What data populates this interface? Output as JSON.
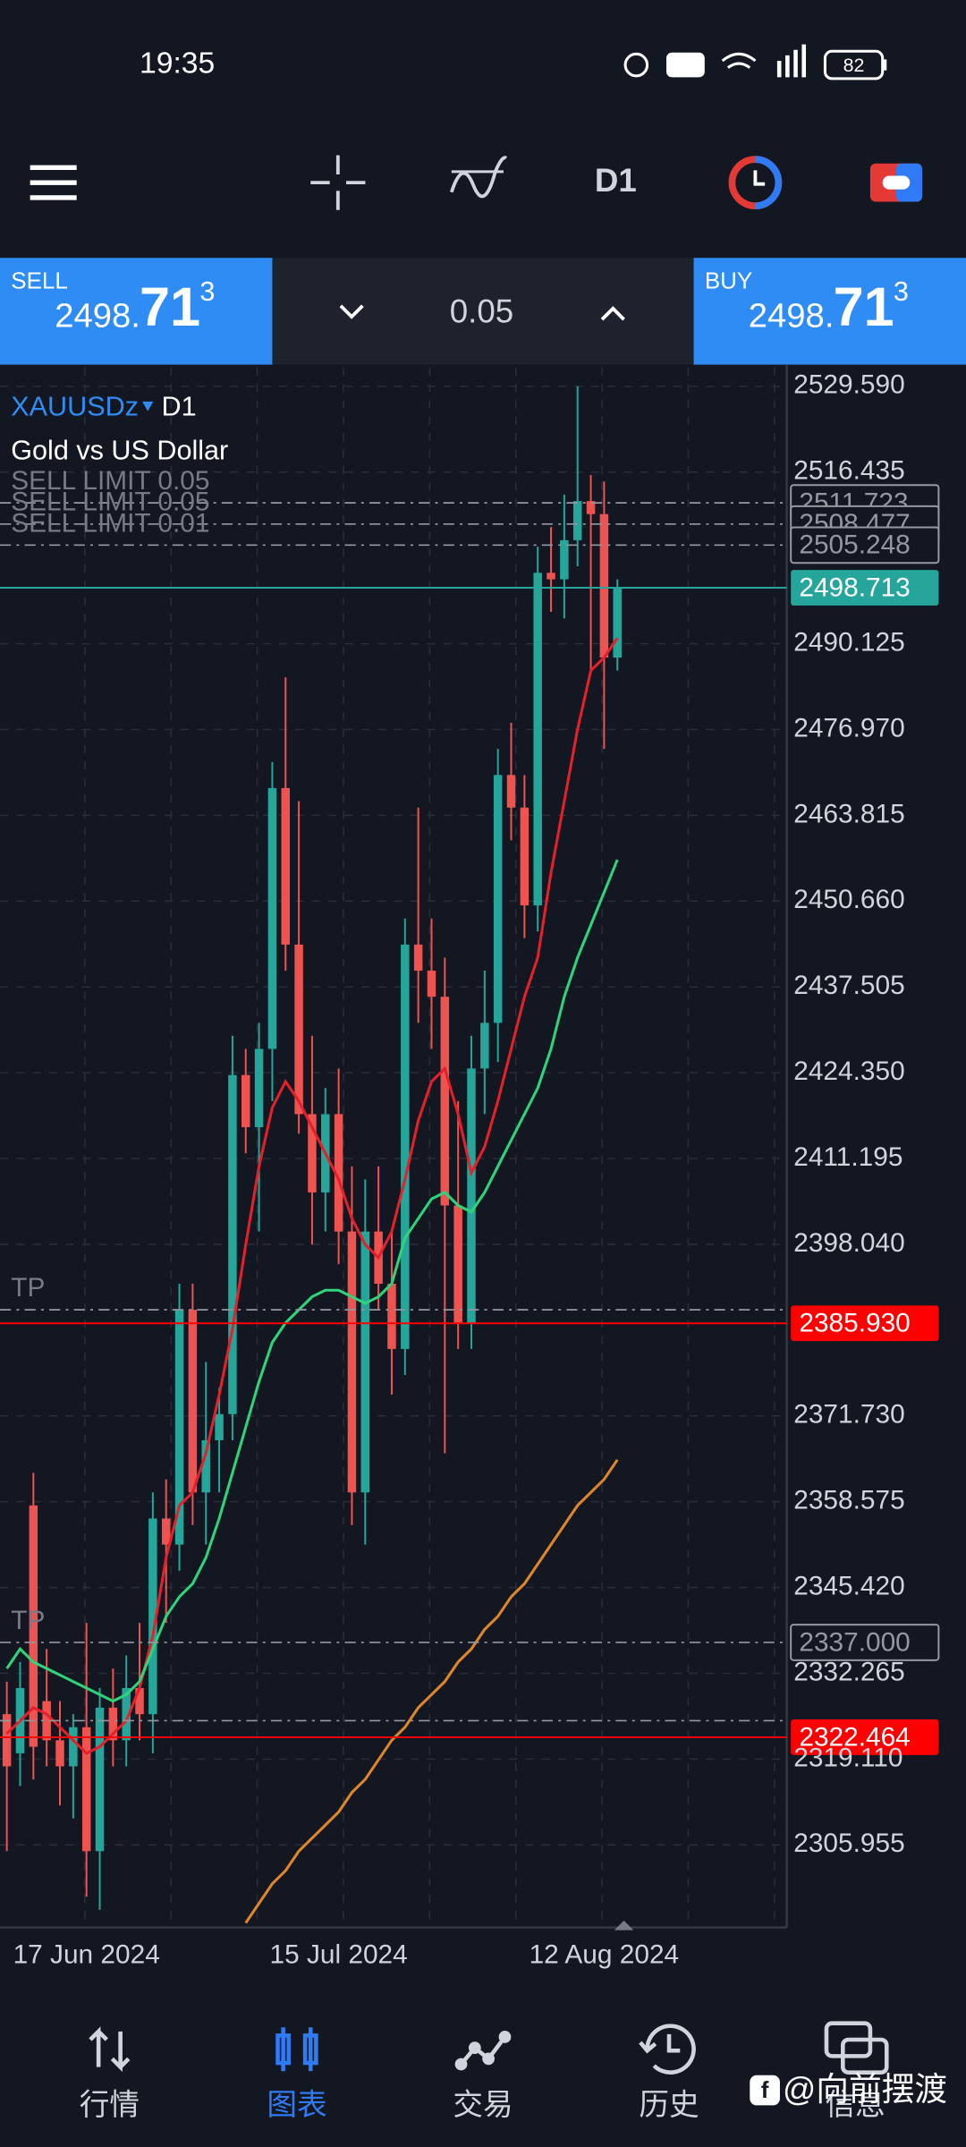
{
  "status_bar": {
    "time": "19:35",
    "battery": "82"
  },
  "toolbar": {
    "timeframe": "D1"
  },
  "trade_panel": {
    "sell": {
      "label": "SELL",
      "price_prefix": "2498.",
      "price_big": "71",
      "price_sup": "3"
    },
    "volume": "0.05",
    "buy": {
      "label": "BUY",
      "price_prefix": "2498.",
      "price_big": "71",
      "price_sup": "3"
    }
  },
  "chart_data": {
    "type": "candlestick",
    "symbol": "XAUUSDz",
    "timeframe": "D1",
    "title": "Gold vs US Dollar",
    "categories": [
      null,
      null,
      null,
      null,
      null,
      null,
      "17 Jun 2024",
      null,
      null,
      null,
      null,
      null,
      null,
      null,
      null,
      null,
      null,
      null,
      null,
      null,
      null,
      null,
      null,
      null,
      null,
      "15 Jul 2024",
      null,
      null,
      null,
      null,
      null,
      null,
      null,
      null,
      null,
      null,
      null,
      null,
      null,
      null,
      null,
      null,
      null,
      null,
      null,
      "12 Aug 2024",
      null
    ],
    "open": [
      2326,
      2320,
      2358,
      2328,
      2322,
      2318,
      2324,
      2305,
      2327,
      2322,
      2330,
      2326,
      2356,
      2352,
      2388,
      2360,
      2368,
      2372,
      2424,
      2416,
      2428,
      2468,
      2444,
      2418,
      2406,
      2418,
      2400,
      2360,
      2400,
      2392,
      2382,
      2444,
      2440,
      2436,
      2404,
      2386,
      2425,
      2432,
      2470,
      2465,
      2450,
      2501,
      2500,
      2506,
      2512,
      2510,
      2488
    ],
    "high": [
      2331,
      2334,
      2363,
      2336,
      2328,
      2326,
      2340,
      2330,
      2333,
      2335,
      2340,
      2360,
      2362,
      2392,
      2392,
      2380,
      2376,
      2430,
      2428,
      2432,
      2472,
      2485,
      2466,
      2430,
      2422,
      2425,
      2410,
      2408,
      2410,
      2400,
      2448,
      2465,
      2448,
      2442,
      2420,
      2430,
      2440,
      2474,
      2478,
      2470,
      2505,
      2508,
      2513,
      2529.6,
      2516,
      2515,
      2500
    ],
    "low": [
      2305,
      2315,
      2316,
      2318,
      2312,
      2310,
      2298,
      2296,
      2318,
      2318,
      2322,
      2320,
      2340,
      2348,
      2355,
      2352,
      2360,
      2368,
      2412,
      2400,
      2420,
      2440,
      2415,
      2398,
      2400,
      2395,
      2355,
      2352,
      2388,
      2375,
      2378,
      2432,
      2428,
      2366,
      2382,
      2382,
      2418,
      2426,
      2460,
      2445,
      2446,
      2495,
      2494,
      2502,
      2486,
      2474,
      2486
    ],
    "close": [
      2318,
      2330,
      2321,
      2322,
      2318,
      2324,
      2305,
      2327,
      2322,
      2330,
      2326,
      2356,
      2352,
      2388,
      2360,
      2368,
      2372,
      2424,
      2416,
      2428,
      2468,
      2444,
      2418,
      2406,
      2418,
      2400,
      2360,
      2400,
      2392,
      2382,
      2444,
      2440,
      2436,
      2404,
      2386,
      2425,
      2432,
      2470,
      2465,
      2450,
      2501,
      2500,
      2506,
      2512,
      2510,
      2488,
      2498.7
    ],
    "up_color": "#26a69a",
    "down_color": "#ef5350",
    "series": [
      {
        "color": "#e5202a",
        "values": [
          2323,
          2325,
          2327,
          2326,
          2324,
          2322,
          2320,
          2321,
          2323,
          2325,
          2330,
          2338,
          2350,
          2358,
          2360,
          2366,
          2375,
          2385,
          2398,
          2410,
          2419,
          2423,
          2420,
          2416,
          2412,
          2408,
          2402,
          2398,
          2396,
          2400,
          2408,
          2417,
          2423,
          2425,
          2418,
          2409,
          2413,
          2420,
          2428,
          2436,
          2442,
          2455,
          2466,
          2477,
          2486,
          2488,
          2491
        ]
      },
      {
        "color": "#2fd47a",
        "values": [
          2333,
          2336,
          2334,
          2333,
          2332,
          2331,
          2330,
          2329,
          2328,
          2329,
          2331,
          2336,
          2341,
          2344,
          2346,
          2350,
          2356,
          2363,
          2370,
          2377,
          2383,
          2386,
          2388,
          2390,
          2391,
          2391,
          2390,
          2389,
          2390,
          2392,
          2399,
          2402,
          2405,
          2406,
          2404,
          2403,
          2406,
          2410,
          2414,
          2418,
          2422,
          2428,
          2436,
          2442,
          2447,
          2452,
          2457
        ]
      },
      {
        "color": "#e0862a",
        "values": [
          null,
          null,
          null,
          null,
          null,
          null,
          null,
          null,
          null,
          null,
          null,
          null,
          null,
          null,
          null,
          null,
          null,
          null,
          2294,
          2297,
          2300,
          2302,
          2305,
          2307,
          2309,
          2311,
          2314,
          2316,
          2319,
          2322,
          2324,
          2327,
          2329,
          2331,
          2334,
          2336,
          2339,
          2341,
          2344,
          2346,
          2349,
          2352,
          2355,
          2358,
          2360,
          2362,
          2365
        ]
      }
    ],
    "ylim": [
      2293.3,
      2532.5
    ],
    "yticks": [
      {
        "value": 2529.59,
        "label": "2529.590"
      },
      {
        "value": 2516.435,
        "label": "2516.435"
      },
      {
        "value": 2490.125,
        "label": "2490.125"
      },
      {
        "value": 2476.97,
        "label": "2476.970"
      },
      {
        "value": 2463.815,
        "label": "2463.815"
      },
      {
        "value": 2450.66,
        "label": "2450.660"
      },
      {
        "value": 2437.505,
        "label": "2437.505"
      },
      {
        "value": 2424.35,
        "label": "2424.350"
      },
      {
        "value": 2411.195,
        "label": "2411.195"
      },
      {
        "value": 2398.04,
        "label": "2398.040"
      },
      {
        "value": 2371.73,
        "label": "2371.730"
      },
      {
        "value": 2358.575,
        "label": "2358.575"
      },
      {
        "value": 2345.42,
        "label": "2345.420"
      },
      {
        "value": 2332.265,
        "label": "2332.265"
      },
      {
        "value": 2319.11,
        "label": "2319.110"
      },
      {
        "value": 2305.955,
        "label": "2305.955"
      }
    ],
    "grid": true,
    "price_lines": [
      {
        "value": 2511.723,
        "label": "2511.723",
        "text": "SELL LIMIT 0.05",
        "color": "#9598a1",
        "style": "dashdot",
        "fill": false
      },
      {
        "value": 2508.477,
        "label": "2508.477",
        "text": "SELL LIMIT 0.05",
        "color": "#9598a1",
        "style": "dashdot",
        "fill": false
      },
      {
        "value": 2505.248,
        "label": "2505.248",
        "text": "SELL LIMIT 0.01",
        "color": "#9598a1",
        "style": "dashdot",
        "fill": false
      },
      {
        "value": 2498.713,
        "label": "2498.713",
        "color": "#26a69a",
        "style": "solid",
        "fill": true
      },
      {
        "value": 2388,
        "text": "TP",
        "color": "#9598a1",
        "style": "dashdot",
        "fill": false
      },
      {
        "value": 2385.93,
        "label": "2385.930",
        "color": "#ff0000",
        "style": "solid",
        "fill": true
      },
      {
        "value": 2337,
        "label": "2337.000",
        "text": "TP",
        "color": "#9598a1",
        "style": "dashdot",
        "fill": false
      },
      {
        "value": 2325,
        "color": "#9598a1",
        "style": "dashdot",
        "fill": false
      },
      {
        "value": 2322.464,
        "label": "2322.464",
        "color": "#ff0000",
        "style": "solid",
        "fill": true
      }
    ]
  },
  "nav": [
    {
      "label": "行情",
      "active": false
    },
    {
      "label": "图表",
      "active": true
    },
    {
      "label": "交易",
      "active": false
    },
    {
      "label": "历史",
      "active": false
    },
    {
      "label": "信息",
      "active": false
    }
  ],
  "watermark": "@向前摆渡"
}
